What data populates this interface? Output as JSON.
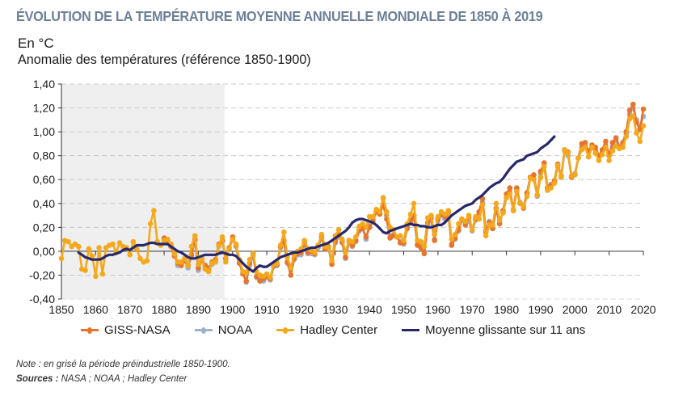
{
  "header": {
    "title": "ÉVOLUTION DE LA TEMPÉRATURE MOYENNE ANNUELLE MONDIALE DE 1850 À 2019",
    "unit": "En °C",
    "subtitle": "Anomalie des températures (référence 1850-1900)"
  },
  "footer": {
    "note": "Note : en grisé la période préindustrielle 1850-1900.",
    "sources_label": "Sources :",
    "sources_text": " NASA ; NOAA ; Hadley Center"
  },
  "colors": {
    "giss": "#e8732a",
    "noaa": "#9fb1c8",
    "hadley": "#f5a81c",
    "moving_avg": "#27276b",
    "title": "#6b7f98",
    "shade": "#efefef"
  },
  "chart_data": {
    "type": "line",
    "title": "ÉVOLUTION DE LA TEMPÉRATURE MOYENNE ANNUELLE MONDIALE DE 1850 À 2019",
    "ylabel": "Anomalie des températures (référence 1850-1900), en °C",
    "xlabel": "",
    "xlim": [
      1850,
      2020
    ],
    "ylim": [
      -0.4,
      1.4
    ],
    "x_ticks": [
      "1850",
      "1860",
      "1870",
      "1880",
      "1890",
      "1900",
      "1910",
      "1920",
      "1930",
      "1940",
      "1950",
      "1960",
      "1970",
      "1980",
      "1990",
      "2000",
      "2010",
      "2020"
    ],
    "y_ticks": [
      "1,40",
      "1,20",
      "1,00",
      "0,80",
      "0,60",
      "0,40",
      "0,20",
      "0,00",
      "-0,20",
      "-0,40"
    ],
    "grid": "horizontal-dashed",
    "shaded_region": {
      "from": 1850,
      "to": 1900,
      "label": "période préindustrielle 1850-1900"
    },
    "legend_position": "bottom",
    "series": [
      {
        "name": "GISS-NASA",
        "key": "giss",
        "x_start": 1880,
        "values": [
          0.11,
          0.09,
          0.04,
          -0.04,
          -0.1,
          -0.12,
          -0.08,
          -0.12,
          -0.03,
          0.1,
          -0.14,
          -0.06,
          -0.12,
          -0.15,
          -0.09,
          -0.07,
          0.06,
          0.09,
          -0.06,
          0.03,
          0.12,
          0.05,
          -0.1,
          -0.19,
          -0.25,
          -0.1,
          -0.02,
          -0.21,
          -0.25,
          -0.23,
          -0.21,
          -0.23,
          -0.12,
          -0.11,
          0.04,
          0.09,
          -0.09,
          -0.2,
          -0.06,
          -0.02,
          -0.01,
          0.07,
          -0.01,
          0.0,
          -0.02,
          0.05,
          0.12,
          0.02,
          0.04,
          -0.11,
          0.08,
          0.14,
          0.08,
          -0.05,
          0.09,
          0.05,
          0.09,
          0.18,
          0.19,
          0.12,
          0.2,
          0.25,
          0.33,
          0.31,
          0.39,
          0.27,
          0.11,
          0.13,
          0.12,
          0.07,
          0.07,
          0.19,
          0.26,
          0.3,
          0.05,
          0.03,
          -0.02,
          0.24,
          0.28,
          0.09,
          0.27,
          0.31,
          0.29,
          0.33,
          0.05,
          0.11,
          0.18,
          0.27,
          0.22,
          0.28,
          0.18,
          0.27,
          0.33,
          0.44,
          0.16,
          0.24,
          0.19,
          0.36,
          0.23,
          0.34,
          0.48,
          0.53,
          0.34,
          0.53,
          0.4,
          0.36,
          0.49,
          0.62,
          0.64,
          0.47,
          0.67,
          0.74,
          0.53,
          0.55,
          0.59,
          0.73,
          0.63,
          0.85,
          0.83,
          0.62,
          0.64,
          0.78,
          0.9,
          0.91,
          0.84,
          0.89,
          0.87,
          0.8,
          0.85,
          0.92,
          0.8,
          0.91,
          0.95,
          0.87,
          0.91,
          1.0,
          1.18,
          1.23,
          1.08,
          1.02,
          1.19
        ]
      },
      {
        "name": "NOAA",
        "key": "noaa",
        "x_start": 1880,
        "values": [
          0.1,
          0.08,
          0.05,
          -0.02,
          -0.12,
          -0.11,
          -0.08,
          -0.14,
          -0.04,
          0.09,
          -0.16,
          -0.08,
          -0.13,
          -0.14,
          -0.11,
          -0.09,
          0.04,
          0.08,
          -0.06,
          0.02,
          0.1,
          0.04,
          -0.09,
          -0.18,
          -0.26,
          -0.12,
          -0.04,
          -0.22,
          -0.24,
          -0.25,
          -0.22,
          -0.24,
          -0.13,
          -0.12,
          0.03,
          0.07,
          -0.1,
          -0.2,
          -0.07,
          -0.03,
          -0.03,
          0.06,
          -0.02,
          -0.02,
          -0.03,
          0.03,
          0.11,
          0.02,
          0.02,
          -0.1,
          0.07,
          0.12,
          0.07,
          -0.06,
          0.07,
          0.04,
          0.08,
          0.17,
          0.19,
          0.1,
          0.22,
          0.27,
          0.33,
          0.32,
          0.44,
          0.3,
          0.12,
          0.14,
          0.12,
          0.08,
          0.06,
          0.2,
          0.24,
          0.28,
          0.06,
          0.04,
          0.0,
          0.22,
          0.27,
          0.1,
          0.25,
          0.3,
          0.27,
          0.31,
          0.06,
          0.1,
          0.17,
          0.26,
          0.24,
          0.25,
          0.17,
          0.26,
          0.31,
          0.41,
          0.18,
          0.25,
          0.19,
          0.35,
          0.24,
          0.33,
          0.45,
          0.5,
          0.35,
          0.52,
          0.41,
          0.38,
          0.49,
          0.62,
          0.61,
          0.46,
          0.65,
          0.72,
          0.53,
          0.56,
          0.58,
          0.71,
          0.62,
          0.84,
          0.8,
          0.63,
          0.65,
          0.78,
          0.87,
          0.89,
          0.83,
          0.88,
          0.85,
          0.8,
          0.84,
          0.89,
          0.81,
          0.88,
          0.93,
          0.87,
          0.9,
          0.98,
          1.15,
          1.2,
          1.1,
          1.04,
          1.13
        ]
      },
      {
        "name": "Hadley Center",
        "key": "hadley",
        "x_start": 1850,
        "values": [
          -0.06,
          0.09,
          0.08,
          0.04,
          0.06,
          0.04,
          -0.15,
          -0.16,
          0.02,
          -0.04,
          -0.21,
          0.03,
          -0.19,
          0.03,
          0.05,
          0.06,
          -0.01,
          0.07,
          0.04,
          0.03,
          -0.03,
          0.08,
          0.02,
          -0.06,
          -0.09,
          -0.08,
          0.23,
          0.34,
          0.08,
          0.05,
          0.09,
          0.1,
          0.06,
          -0.02,
          -0.09,
          -0.09,
          -0.06,
          -0.12,
          0.04,
          0.13,
          -0.11,
          -0.06,
          -0.15,
          -0.17,
          -0.1,
          -0.09,
          0.05,
          0.12,
          -0.09,
          0.02,
          0.1,
          0.06,
          -0.07,
          -0.17,
          -0.18,
          -0.07,
          -0.02,
          -0.17,
          -0.2,
          -0.21,
          -0.19,
          -0.22,
          -0.11,
          -0.1,
          0.05,
          0.16,
          -0.05,
          -0.14,
          -0.03,
          0.0,
          0.02,
          0.09,
          0.02,
          0.01,
          -0.01,
          0.05,
          0.14,
          0.04,
          0.03,
          -0.08,
          0.13,
          0.18,
          0.1,
          -0.01,
          0.09,
          0.08,
          0.12,
          0.21,
          0.23,
          0.2,
          0.29,
          0.29,
          0.35,
          0.33,
          0.45,
          0.33,
          0.2,
          0.18,
          0.12,
          0.13,
          0.09,
          0.23,
          0.31,
          0.4,
          0.09,
          0.08,
          0.04,
          0.28,
          0.3,
          0.14,
          0.29,
          0.33,
          0.31,
          0.34,
          0.1,
          0.14,
          0.23,
          0.27,
          0.25,
          0.3,
          0.18,
          0.29,
          0.27,
          0.39,
          0.13,
          0.22,
          0.22,
          0.4,
          0.26,
          0.32,
          0.45,
          0.48,
          0.34,
          0.5,
          0.4,
          0.37,
          0.46,
          0.61,
          0.6,
          0.47,
          0.62,
          0.71,
          0.51,
          0.53,
          0.57,
          0.72,
          0.62,
          0.85,
          0.82,
          0.63,
          0.64,
          0.78,
          0.85,
          0.87,
          0.79,
          0.87,
          0.82,
          0.76,
          0.81,
          0.87,
          0.76,
          0.84,
          0.88,
          0.86,
          0.87,
          0.96,
          1.11,
          1.13,
          0.99,
          0.92,
          1.05
        ]
      },
      {
        "name": "Moyenne glissante sur 11 ans",
        "key": "moving_avg",
        "x_start": 1855,
        "values": [
          -0.01,
          -0.03,
          -0.05,
          -0.06,
          -0.07,
          -0.07,
          -0.07,
          -0.06,
          -0.04,
          -0.03,
          -0.03,
          -0.02,
          -0.01,
          0.01,
          0.02,
          0.01,
          0.03,
          0.05,
          0.05,
          0.05,
          0.06,
          0.07,
          0.07,
          0.06,
          0.06,
          0.06,
          0.06,
          0.04,
          0.02,
          0.0,
          -0.01,
          -0.03,
          -0.05,
          -0.06,
          -0.06,
          -0.05,
          -0.04,
          -0.03,
          -0.03,
          -0.03,
          -0.03,
          -0.02,
          -0.01,
          -0.02,
          -0.03,
          -0.03,
          -0.04,
          -0.07,
          -0.1,
          -0.13,
          -0.15,
          -0.17,
          -0.14,
          -0.12,
          -0.13,
          -0.13,
          -0.11,
          -0.09,
          -0.07,
          -0.05,
          -0.04,
          -0.03,
          -0.02,
          -0.01,
          -0.01,
          0.0,
          0.01,
          0.02,
          0.03,
          0.03,
          0.04,
          0.05,
          0.06,
          0.07,
          0.09,
          0.11,
          0.13,
          0.15,
          0.17,
          0.2,
          0.24,
          0.26,
          0.27,
          0.27,
          0.26,
          0.25,
          0.24,
          0.22,
          0.19,
          0.16,
          0.15,
          0.17,
          0.18,
          0.19,
          0.2,
          0.21,
          0.22,
          0.23,
          0.22,
          0.22,
          0.21,
          0.21,
          0.2,
          0.2,
          0.21,
          0.22,
          0.22,
          0.24,
          0.27,
          0.3,
          0.32,
          0.34,
          0.36,
          0.38,
          0.39,
          0.4,
          0.43,
          0.45,
          0.47,
          0.5,
          0.53,
          0.55,
          0.57,
          0.58,
          0.61,
          0.65,
          0.69,
          0.72,
          0.75,
          0.76,
          0.77,
          0.8,
          0.81,
          0.82,
          0.83,
          0.86,
          0.88,
          0.9,
          0.93,
          0.96
        ]
      }
    ]
  },
  "legend": [
    {
      "label": "GISS-NASA",
      "key": "giss"
    },
    {
      "label": "NOAA",
      "key": "noaa"
    },
    {
      "label": "Hadley Center",
      "key": "hadley"
    },
    {
      "label": "Moyenne glissante sur 11 ans",
      "key": "moving_avg"
    }
  ]
}
